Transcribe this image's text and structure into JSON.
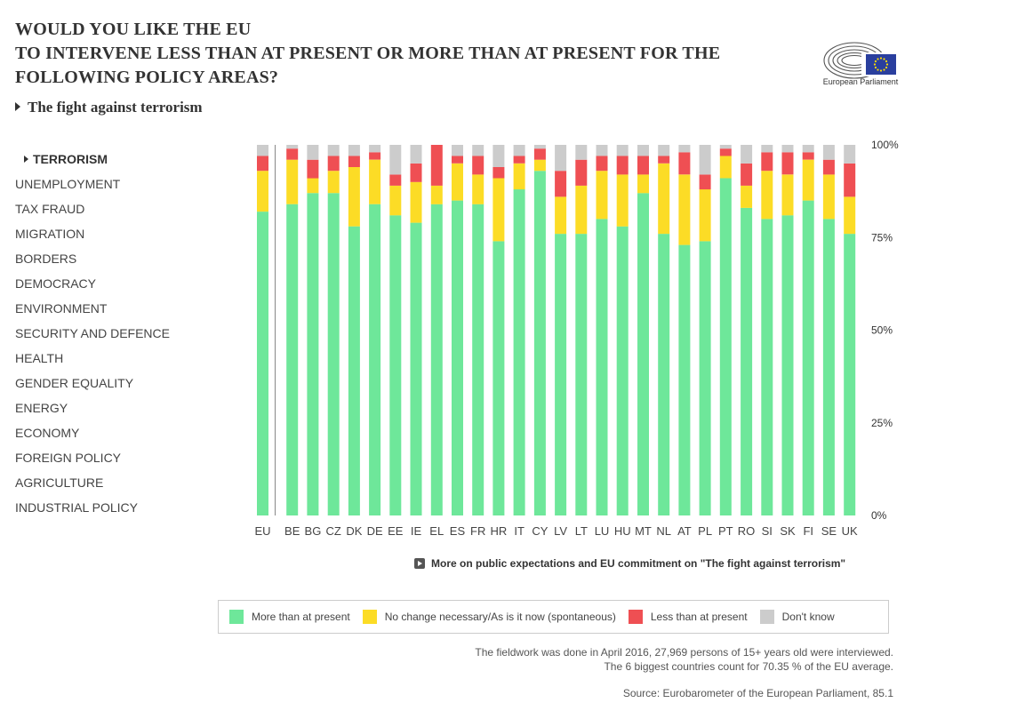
{
  "header": {
    "title_lines": [
      "WOULD YOU LIKE THE EU",
      "TO INTERVENE LESS THAN AT PRESENT OR MORE THAN AT PRESENT FOR THE",
      "FOLLOWING POLICY AREAS?"
    ],
    "subtitle": "The fight against terrorism",
    "logo_text": "European Parliament"
  },
  "colors": {
    "more": "#6ee79a",
    "no_change": "#fcdc26",
    "less": "#ef4f53",
    "dont_know": "#cccccc",
    "eu_flag": "#2a3f9e",
    "star": "#ffdd00"
  },
  "topics": [
    {
      "label": "TERRORISM",
      "active": true
    },
    {
      "label": "UNEMPLOYMENT",
      "active": false
    },
    {
      "label": "TAX FRAUD",
      "active": false
    },
    {
      "label": "MIGRATION",
      "active": false
    },
    {
      "label": "BORDERS",
      "active": false
    },
    {
      "label": "DEMOCRACY",
      "active": false
    },
    {
      "label": "ENVIRONMENT",
      "active": false
    },
    {
      "label": "SECURITY AND DEFENCE",
      "active": false
    },
    {
      "label": "HEALTH",
      "active": false
    },
    {
      "label": "GENDER EQUALITY",
      "active": false
    },
    {
      "label": "ENERGY",
      "active": false
    },
    {
      "label": "ECONOMY",
      "active": false
    },
    {
      "label": "FOREIGN POLICY",
      "active": false
    },
    {
      "label": "AGRICULTURE",
      "active": false
    },
    {
      "label": "INDUSTRIAL POLICY",
      "active": false
    }
  ],
  "chart_data": {
    "type": "bar",
    "stacked": true,
    "categories": [
      "EU",
      "BE",
      "BG",
      "CZ",
      "DK",
      "DE",
      "EE",
      "IE",
      "EL",
      "ES",
      "FR",
      "HR",
      "IT",
      "CY",
      "LV",
      "LT",
      "LU",
      "HU",
      "MT",
      "NL",
      "AT",
      "PL",
      "PT",
      "RO",
      "SI",
      "SK",
      "FI",
      "SE",
      "UK"
    ],
    "series": [
      {
        "name": "More than at present",
        "key": "more",
        "values": [
          82,
          84,
          87,
          87,
          78,
          84,
          81,
          79,
          84,
          85,
          84,
          74,
          88,
          93,
          76,
          76,
          80,
          78,
          87,
          76,
          73,
          74,
          91,
          83,
          80,
          81,
          85,
          80,
          76
        ]
      },
      {
        "name": "No change necessary/As is it now (spontaneous)",
        "key": "no_change",
        "values": [
          11,
          12,
          4,
          6,
          16,
          12,
          8,
          11,
          5,
          10,
          8,
          17,
          7,
          3,
          10,
          13,
          13,
          14,
          5,
          19,
          19,
          14,
          6,
          6,
          13,
          11,
          11,
          12,
          10
        ]
      },
      {
        "name": "Less than at present",
        "key": "less",
        "values": [
          4,
          3,
          5,
          4,
          3,
          2,
          3,
          5,
          11,
          2,
          5,
          3,
          2,
          3,
          7,
          7,
          4,
          5,
          5,
          2,
          6,
          4,
          2,
          6,
          5,
          6,
          2,
          4,
          9
        ]
      },
      {
        "name": "Don't know",
        "key": "dont_know",
        "values": [
          3,
          1,
          4,
          3,
          3,
          2,
          8,
          5,
          0,
          3,
          3,
          6,
          3,
          1,
          7,
          4,
          3,
          3,
          3,
          3,
          2,
          8,
          1,
          5,
          2,
          2,
          2,
          4,
          5
        ]
      }
    ],
    "y_ticks": [
      "0%",
      "25%",
      "50%",
      "75%",
      "100%"
    ],
    "ylim": [
      0,
      100
    ],
    "y_axis_side": "right",
    "grid": false,
    "legend_position": "bottom"
  },
  "more_link": "More on public expectations and EU commitment on \"The fight against terrorism\"",
  "footnote_lines": [
    "The fieldwork was done in April 2016, 27,969 persons of 15+ years old were interviewed.",
    "The 6 biggest countries count for 70.35 % of the EU average."
  ],
  "source": "Source: Eurobarometer of the European Parliament, 85.1"
}
